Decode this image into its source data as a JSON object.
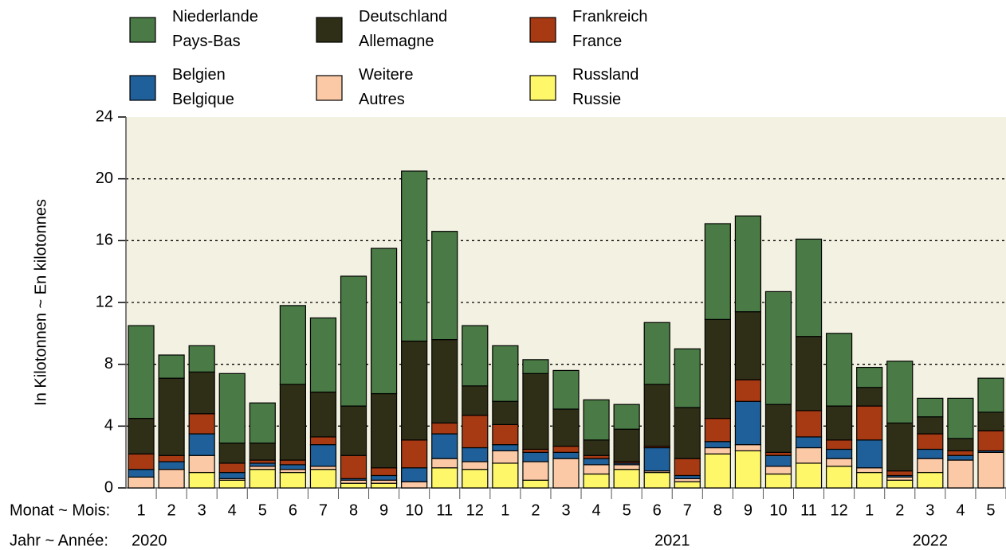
{
  "chart_data": {
    "type": "stacked_bar",
    "y_label": "In Kilotonnen   ~   En kilotonnes",
    "x_label_month": "Monat ~ Mois:",
    "x_label_year": "Jahr ~ Année:",
    "years": [
      "2020",
      "2021",
      "2022"
    ],
    "categories": [
      "1",
      "2",
      "3",
      "4",
      "5",
      "6",
      "7",
      "8",
      "9",
      "10",
      "11",
      "12",
      "1",
      "2",
      "3",
      "4",
      "5",
      "6",
      "7",
      "8",
      "9",
      "10",
      "11",
      "12",
      "1",
      "2",
      "3",
      "4",
      "5"
    ],
    "series": [
      {
        "name": "Russland\nRussie",
        "color": "#fef76a",
        "values": [
          0,
          0,
          1.0,
          0.5,
          1.2,
          1.0,
          1.2,
          0.3,
          0.3,
          0,
          1.3,
          1.2,
          1.6,
          0.5,
          0,
          0.9,
          1.2,
          1.0,
          0.4,
          2.2,
          2.4,
          0.9,
          1.6,
          1.4,
          1.0,
          0.5,
          1.0,
          0,
          0
        ]
      },
      {
        "name": "Weitere\nAutres",
        "color": "#fcc9a6",
        "values": [
          0.7,
          1.2,
          1.1,
          0.1,
          0.2,
          0.2,
          0.2,
          0.2,
          0.2,
          0.4,
          0.6,
          0.5,
          0.8,
          1.2,
          1.9,
          0.6,
          0.3,
          0.1,
          0.2,
          0.4,
          0.4,
          0.5,
          1.0,
          0.5,
          0.3,
          0.2,
          0.9,
          1.8,
          2.3
        ]
      },
      {
        "name": "Belgien\nBelgique",
        "color": "#1f5f9a",
        "values": [
          0.5,
          0.5,
          1.4,
          0.4,
          0.2,
          0.3,
          1.4,
          0.1,
          0.3,
          0.9,
          1.6,
          0.9,
          0.4,
          0.6,
          0.4,
          0.4,
          0.1,
          1.5,
          0.2,
          0.4,
          2.8,
          0.7,
          0.7,
          0.6,
          1.8,
          0.1,
          0.6,
          0.3,
          0.1
        ]
      },
      {
        "name": "Frankreich\nFrance",
        "color": "#a73a13",
        "values": [
          1.0,
          0.4,
          1.3,
          0.6,
          0.2,
          0.3,
          0.5,
          1.5,
          0.5,
          1.8,
          0.7,
          2.1,
          1.3,
          0.2,
          0.4,
          0.2,
          0.1,
          0.1,
          1.1,
          1.5,
          1.4,
          0.2,
          1.7,
          0.6,
          2.2,
          0.3,
          1.0,
          0.3,
          1.3
        ]
      },
      {
        "name": "Deutschland\nAllemagne",
        "color": "#2f2f17",
        "values": [
          2.3,
          5.0,
          2.7,
          1.3,
          1.1,
          4.9,
          2.9,
          3.2,
          4.8,
          6.4,
          5.4,
          1.9,
          1.5,
          4.9,
          2.4,
          1.0,
          2.1,
          4.0,
          3.3,
          6.4,
          4.4,
          3.1,
          4.8,
          2.2,
          1.2,
          3.1,
          1.1,
          0.8,
          1.2
        ]
      },
      {
        "name": "Niederlande\nPays-Bas",
        "color": "#4a7a45",
        "values": [
          6.0,
          1.5,
          1.7,
          4.5,
          2.6,
          5.1,
          4.8,
          8.4,
          9.4,
          11.0,
          7.0,
          3.9,
          3.6,
          0.9,
          2.5,
          2.6,
          1.6,
          4.0,
          3.8,
          6.2,
          6.2,
          7.3,
          6.3,
          4.7,
          1.3,
          4.0,
          1.2,
          2.6,
          2.2
        ]
      }
    ],
    "ylim": [
      0,
      24
    ],
    "yticks": [
      0,
      4,
      8,
      12,
      16,
      20,
      24
    ],
    "grid": true,
    "plot_background": "#f3f1e1"
  }
}
